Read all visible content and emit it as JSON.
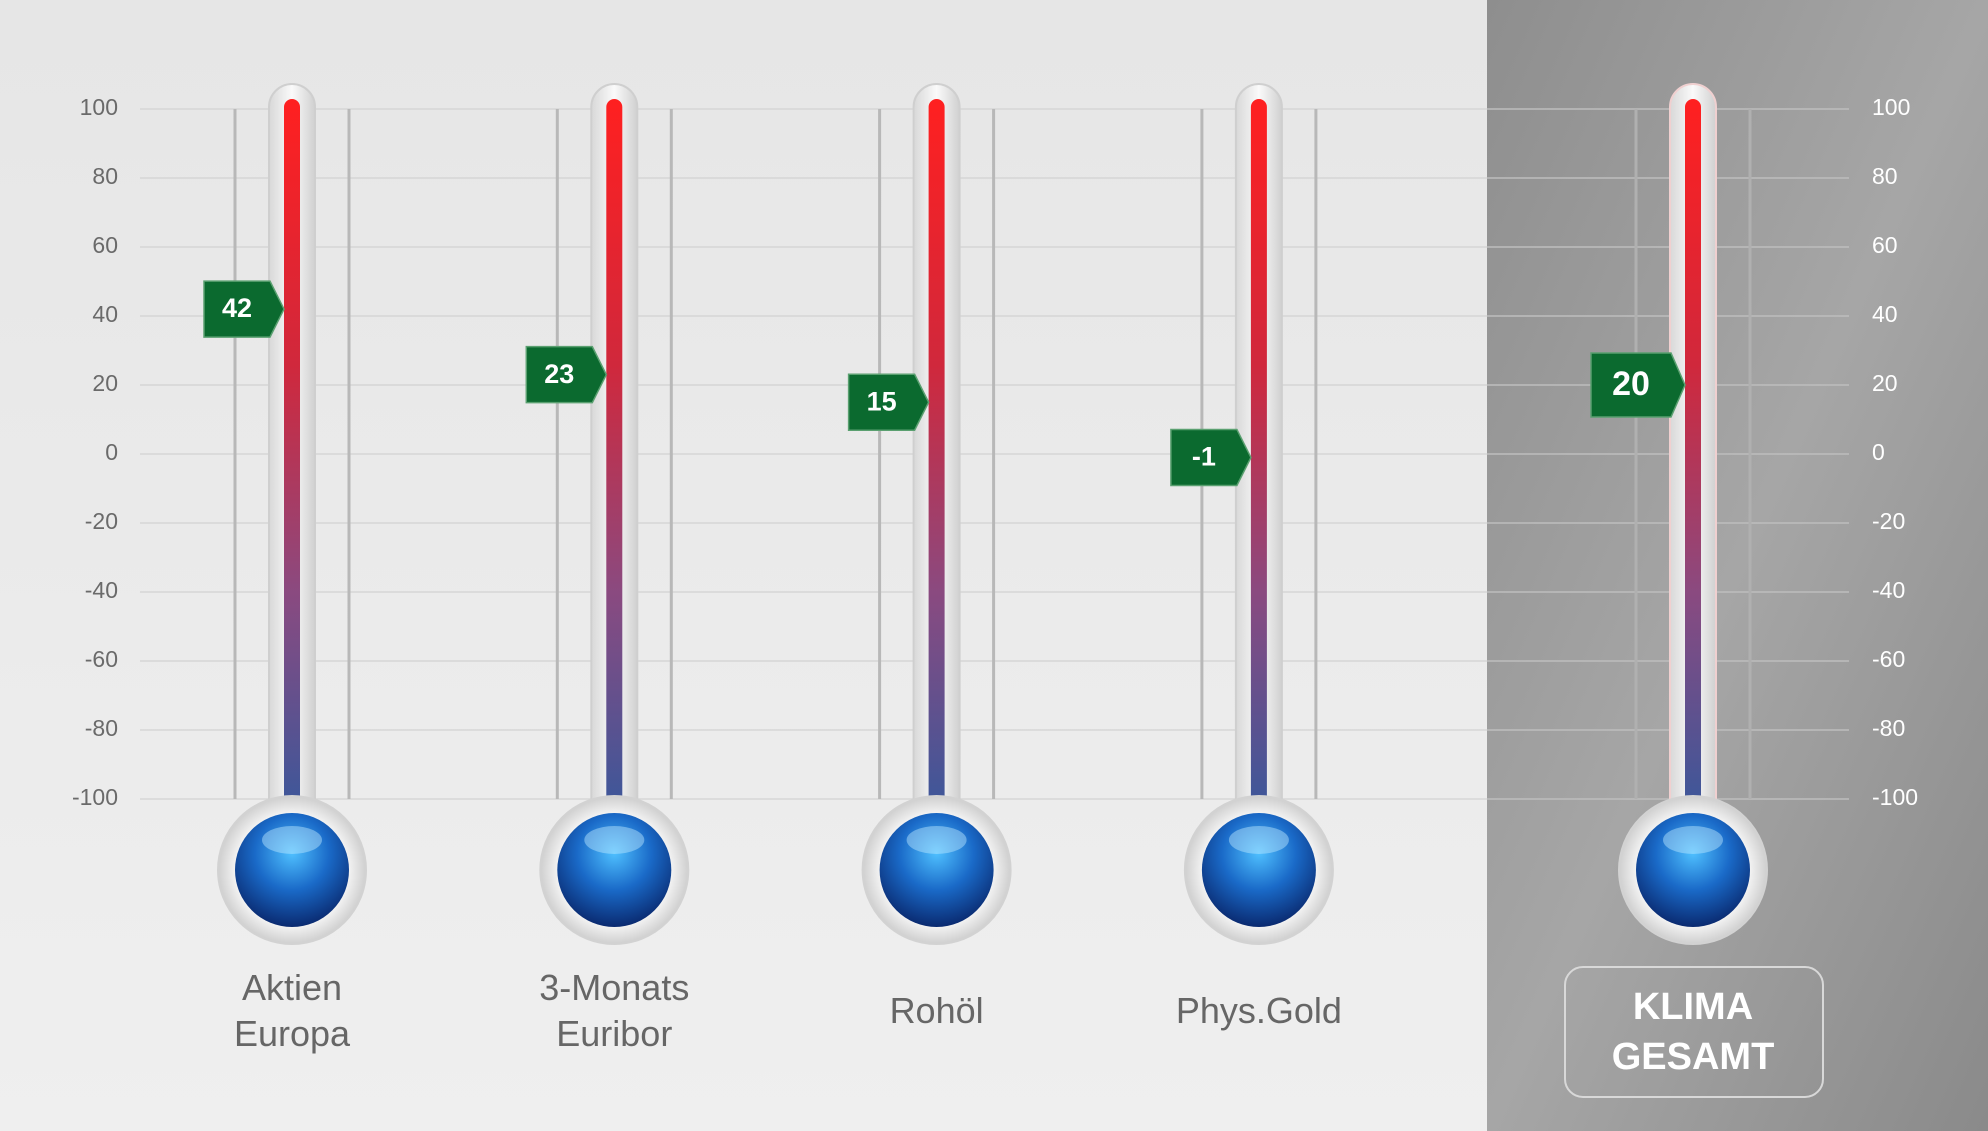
{
  "chart_data": {
    "type": "thermometer",
    "categories": [
      "Aktien Europa",
      "3-Monats Euribor",
      "Rohöl",
      "Phys.Gold",
      "KLIMA GESAMT"
    ],
    "values": [
      42,
      23,
      15,
      -1,
      20
    ],
    "color": "#0b6a2f",
    "ylim": [
      -100,
      100
    ],
    "yticks": [
      -100,
      -80,
      -60,
      -40,
      -20,
      0,
      20,
      40,
      60,
      80,
      100
    ],
    "grid": true
  }
}
